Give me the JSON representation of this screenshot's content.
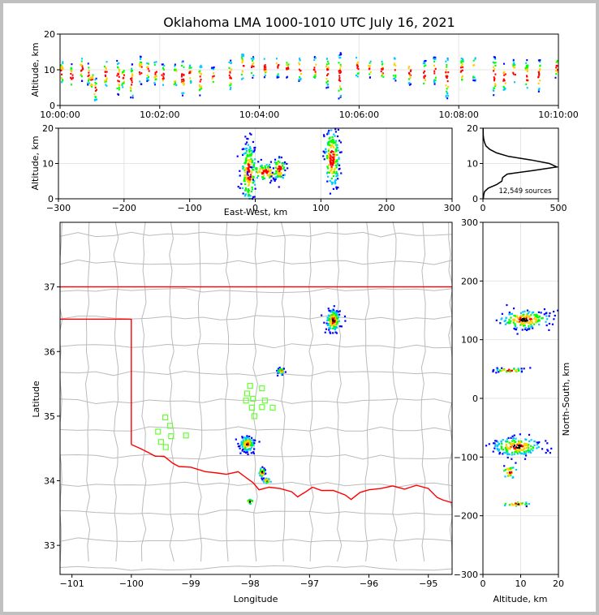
{
  "chart_data": {
    "type": "scatter",
    "title": "Oklahoma LMA 1000-1010 UTC July 16, 2021",
    "panels": {
      "time_height": {
        "ylabel": "Altitude, km",
        "ylim": [
          0,
          20
        ],
        "yticks": [
          "0",
          "10",
          "20"
        ],
        "xticks": [
          "10:00:00",
          "10:02:00",
          "10:04:00",
          "10:06:00",
          "10:08:00",
          "10:10:00"
        ],
        "columns": [
          {
            "t": 0.02,
            "lo": 6,
            "hi": 13
          },
          {
            "t": 0.22,
            "lo": 5,
            "hi": 12
          },
          {
            "t": 0.42,
            "lo": 7,
            "hi": 14
          },
          {
            "t": 0.55,
            "lo": 6,
            "hi": 12
          },
          {
            "t": 0.62,
            "lo": 4,
            "hi": 10
          },
          {
            "t": 0.7,
            "lo": 1,
            "hi": 8
          },
          {
            "t": 0.9,
            "lo": 5,
            "hi": 13
          },
          {
            "t": 1.15,
            "lo": 3,
            "hi": 13
          },
          {
            "t": 1.25,
            "lo": 5,
            "hi": 11
          },
          {
            "t": 1.42,
            "lo": 2,
            "hi": 12
          },
          {
            "t": 1.6,
            "lo": 6,
            "hi": 14
          },
          {
            "t": 1.75,
            "lo": 7,
            "hi": 13
          },
          {
            "t": 1.9,
            "lo": 6,
            "hi": 13
          },
          {
            "t": 2.05,
            "lo": 5,
            "hi": 12
          },
          {
            "t": 2.3,
            "lo": 5,
            "hi": 12
          },
          {
            "t": 2.45,
            "lo": 3,
            "hi": 13
          },
          {
            "t": 2.6,
            "lo": 6,
            "hi": 12
          },
          {
            "t": 2.8,
            "lo": 3,
            "hi": 12
          },
          {
            "t": 3.05,
            "lo": 6,
            "hi": 11
          },
          {
            "t": 3.4,
            "lo": 4,
            "hi": 13
          },
          {
            "t": 3.65,
            "lo": 7,
            "hi": 15
          },
          {
            "t": 3.85,
            "lo": 8,
            "hi": 14
          },
          {
            "t": 4.1,
            "lo": 8,
            "hi": 14
          },
          {
            "t": 4.35,
            "lo": 8,
            "hi": 14
          },
          {
            "t": 4.55,
            "lo": 8,
            "hi": 13
          },
          {
            "t": 4.8,
            "lo": 7,
            "hi": 14
          },
          {
            "t": 5.1,
            "lo": 7,
            "hi": 14
          },
          {
            "t": 5.35,
            "lo": 5,
            "hi": 14
          },
          {
            "t": 5.6,
            "lo": 2,
            "hi": 15
          },
          {
            "t": 5.95,
            "lo": 8,
            "hi": 14
          },
          {
            "t": 6.2,
            "lo": 8,
            "hi": 13
          },
          {
            "t": 6.45,
            "lo": 7,
            "hi": 13
          },
          {
            "t": 6.7,
            "lo": 7,
            "hi": 14
          },
          {
            "t": 7.0,
            "lo": 6,
            "hi": 13
          },
          {
            "t": 7.3,
            "lo": 5,
            "hi": 13
          },
          {
            "t": 7.5,
            "lo": 6,
            "hi": 14
          },
          {
            "t": 7.75,
            "lo": 2,
            "hi": 14
          },
          {
            "t": 8.05,
            "lo": 6,
            "hi": 14
          },
          {
            "t": 8.3,
            "lo": 7,
            "hi": 14
          },
          {
            "t": 8.7,
            "lo": 3,
            "hi": 14
          },
          {
            "t": 8.9,
            "lo": 4,
            "hi": 12
          },
          {
            "t": 9.1,
            "lo": 6,
            "hi": 13
          },
          {
            "t": 9.35,
            "lo": 4,
            "hi": 13
          },
          {
            "t": 9.6,
            "lo": 4,
            "hi": 13
          },
          {
            "t": 9.95,
            "lo": 8,
            "hi": 14
          }
        ]
      },
      "ew_height": {
        "xlabel": "East-West, km",
        "ylabel": "Altitude, km",
        "xlim": [
          -300,
          300
        ],
        "ylim": [
          0,
          20
        ],
        "xticks": [
          "−300",
          "−200",
          "−100",
          "0",
          "100",
          "200",
          "300"
        ],
        "yticks": [
          "0",
          "10",
          "20"
        ],
        "clusters": [
          {
            "x": -10,
            "y": 7.5,
            "sx": 6,
            "sy": 4.5,
            "n": 190
          },
          {
            "x": 15,
            "y": 7.5,
            "sx": 13,
            "sy": 1.3,
            "n": 90
          },
          {
            "x": 37,
            "y": 8.5,
            "sx": 5,
            "sy": 1.8,
            "n": 70
          },
          {
            "x": 117,
            "y": 11.5,
            "sx": 6,
            "sy": 4.5,
            "n": 180
          }
        ]
      },
      "height_histogram": {
        "xlim": [
          0,
          500
        ],
        "ylim": [
          0,
          20
        ],
        "xticks": [
          "0",
          "500"
        ],
        "yticks": [
          "0",
          "10",
          "20"
        ],
        "annotation": "12,549 sources",
        "profile": [
          {
            "z": 0,
            "n": 2
          },
          {
            "z": 1,
            "n": 5
          },
          {
            "z": 2,
            "n": 10
          },
          {
            "z": 3,
            "n": 35
          },
          {
            "z": 4,
            "n": 90
          },
          {
            "z": 5,
            "n": 125
          },
          {
            "z": 6,
            "n": 130
          },
          {
            "z": 7,
            "n": 160
          },
          {
            "z": 8,
            "n": 330
          },
          {
            "z": 9,
            "n": 490
          },
          {
            "z": 10,
            "n": 440
          },
          {
            "z": 11,
            "n": 320
          },
          {
            "z": 12,
            "n": 170
          },
          {
            "z": 13,
            "n": 90
          },
          {
            "z": 14,
            "n": 45
          },
          {
            "z": 15,
            "n": 20
          },
          {
            "z": 16,
            "n": 10
          },
          {
            "z": 17,
            "n": 5
          },
          {
            "z": 18,
            "n": 2
          },
          {
            "z": 20,
            "n": 1
          }
        ]
      },
      "plan_view": {
        "xlabel": "Longitude",
        "ylabel": "Latitude",
        "xlim": [
          -101.2,
          -94.6
        ],
        "ylim": [
          32.55,
          38.0
        ],
        "xticks": [
          "−101",
          "−100",
          "−99",
          "−98",
          "−97",
          "−96",
          "−95"
        ],
        "yticks": [
          "33",
          "34",
          "35",
          "36",
          "37"
        ],
        "clusters": [
          {
            "lon": -96.6,
            "lat": 36.48,
            "sx": 0.06,
            "sy": 0.09,
            "n": 150
          },
          {
            "lon": -97.48,
            "lat": 35.7,
            "sx": 0.03,
            "sy": 0.03,
            "n": 35
          },
          {
            "lon": -98.05,
            "lat": 34.57,
            "sx": 0.06,
            "sy": 0.06,
            "n": 130
          },
          {
            "lon": -97.8,
            "lat": 34.13,
            "sx": 0.03,
            "sy": 0.04,
            "n": 30
          },
          {
            "lon": -97.72,
            "lat": 34.0,
            "sx": 0.04,
            "sy": 0.02,
            "n": 25
          },
          {
            "lon": -98.0,
            "lat": 33.68,
            "sx": 0.03,
            "sy": 0.02,
            "n": 20
          }
        ],
        "stations": [
          {
            "lon": -98.0,
            "lat": 35.47
          },
          {
            "lon": -98.05,
            "lat": 35.35
          },
          {
            "lon": -97.95,
            "lat": 35.27
          },
          {
            "lon": -98.07,
            "lat": 35.24
          },
          {
            "lon": -97.8,
            "lat": 35.43
          },
          {
            "lon": -97.75,
            "lat": 35.24
          },
          {
            "lon": -97.8,
            "lat": 35.14
          },
          {
            "lon": -97.62,
            "lat": 35.13
          },
          {
            "lon": -97.97,
            "lat": 35.13
          },
          {
            "lon": -97.93,
            "lat": 35.0
          },
          {
            "lon": -99.43,
            "lat": 34.98
          },
          {
            "lon": -99.35,
            "lat": 34.85
          },
          {
            "lon": -99.55,
            "lat": 34.76
          },
          {
            "lon": -99.33,
            "lat": 34.69
          },
          {
            "lon": -99.08,
            "lat": 34.7
          },
          {
            "lon": -99.5,
            "lat": 34.6
          },
          {
            "lon": -99.42,
            "lat": 34.52
          }
        ],
        "state_line": [
          [
            -101.2,
            37.0
          ],
          [
            -94.6,
            37.0
          ]
        ],
        "panhandle": [
          [
            -101.2,
            36.5
          ],
          [
            -100.0,
            36.5
          ],
          [
            -100.0,
            34.56
          ]
        ],
        "red_river": [
          [
            -100.0,
            34.56
          ],
          [
            -99.85,
            34.5
          ],
          [
            -99.7,
            34.43
          ],
          [
            -99.6,
            34.38
          ],
          [
            -99.45,
            34.38
          ],
          [
            -99.3,
            34.27
          ],
          [
            -99.2,
            34.22
          ],
          [
            -99.0,
            34.21
          ],
          [
            -98.75,
            34.14
          ],
          [
            -98.55,
            34.12
          ],
          [
            -98.4,
            34.1
          ],
          [
            -98.2,
            34.14
          ],
          [
            -98.1,
            34.07
          ],
          [
            -97.95,
            33.97
          ],
          [
            -97.85,
            33.86
          ],
          [
            -97.68,
            33.9
          ],
          [
            -97.5,
            33.88
          ],
          [
            -97.3,
            33.83
          ],
          [
            -97.2,
            33.75
          ],
          [
            -97.08,
            33.82
          ],
          [
            -96.95,
            33.9
          ],
          [
            -96.8,
            33.85
          ],
          [
            -96.6,
            33.85
          ],
          [
            -96.4,
            33.78
          ],
          [
            -96.3,
            33.71
          ],
          [
            -96.15,
            33.82
          ],
          [
            -96.0,
            33.86
          ],
          [
            -95.8,
            33.88
          ],
          [
            -95.6,
            33.92
          ],
          [
            -95.4,
            33.87
          ],
          [
            -95.2,
            33.93
          ],
          [
            -95.0,
            33.88
          ],
          [
            -94.85,
            33.74
          ],
          [
            -94.75,
            33.7
          ],
          [
            -94.6,
            33.66
          ]
        ]
      },
      "ns_height": {
        "xlabel": "Altitude, km",
        "ylabel": "North-South, km",
        "xlim": [
          0,
          20
        ],
        "ylim": [
          -300,
          300
        ],
        "xticks": [
          "0",
          "10",
          "20"
        ],
        "yticks": [
          "−300",
          "−200",
          "−100",
          "0",
          "100",
          "200",
          "300"
        ],
        "clusters": [
          {
            "z": 11,
            "y": 134,
            "sx": 3.5,
            "sy": 8,
            "n": 180
          },
          {
            "z": 7,
            "y": 48,
            "sx": 2.2,
            "sy": 2,
            "n": 40
          },
          {
            "z": 9,
            "y": -82,
            "sx": 3.2,
            "sy": 8,
            "n": 190
          },
          {
            "z": 7,
            "y": -125,
            "sx": 1.2,
            "sy": 6,
            "n": 30
          },
          {
            "z": 9,
            "y": -180,
            "sx": 2.2,
            "sy": 2,
            "n": 30
          }
        ]
      }
    }
  },
  "colors": {
    "cold": "#0000ff",
    "mid": "#00c8ff",
    "warm": "#00ff00",
    "hot": "#ffd000",
    "hottest": "#ff0000",
    "core": "#000000",
    "border": "#ff0000",
    "counties": "#bbbbbb",
    "stations": "#66ff33"
  }
}
